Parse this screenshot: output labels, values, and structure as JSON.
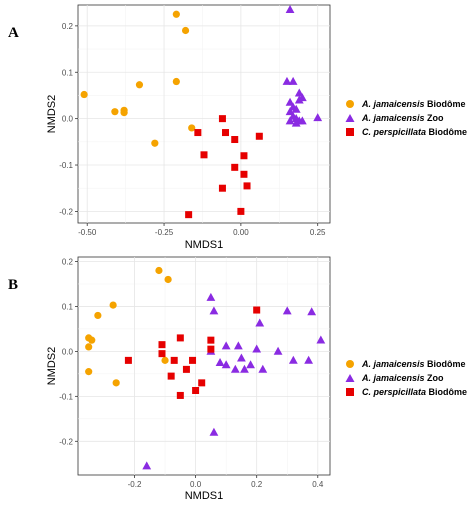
{
  "colors": {
    "orange": "#F5A300",
    "purple": "#8A2BE2",
    "red": "#E60000"
  },
  "chart_data": [
    {
      "panel": "A",
      "type": "scatter",
      "xlabel": "NMDS1",
      "ylabel": "NMDS2",
      "xlim": [
        -0.53,
        0.29
      ],
      "ylim": [
        -0.225,
        0.245
      ],
      "x_ticks": [
        -0.5,
        -0.25,
        0.0,
        0.25
      ],
      "x_tick_labels": [
        "-0.50",
        "-0.25",
        "0.00",
        "0.25"
      ],
      "y_ticks": [
        -0.2,
        -0.1,
        0.0,
        0.1,
        0.2
      ],
      "y_tick_labels": [
        "-0.2",
        "-0.1",
        "0.0",
        "0.1",
        "0.2"
      ],
      "grid": true,
      "legend": "right",
      "series": [
        {
          "legend_italic": "A. jamaicensis",
          "legend_rest": " Biodôme",
          "marker": "circle",
          "color": "#F5A300",
          "points": [
            [
              -0.21,
              0.225
            ],
            [
              -0.18,
              0.19
            ],
            [
              -0.51,
              0.052
            ],
            [
              -0.41,
              0.015
            ],
            [
              -0.38,
              0.018
            ],
            [
              -0.38,
              0.013
            ],
            [
              -0.33,
              0.073
            ],
            [
              -0.21,
              0.08
            ],
            [
              -0.28,
              -0.053
            ],
            [
              -0.16,
              -0.02
            ]
          ]
        },
        {
          "legend_italic": "A. jamaicensis",
          "legend_rest": " Zoo",
          "marker": "triangle",
          "color": "#8A2BE2",
          "points": [
            [
              0.16,
              0.235
            ],
            [
              0.15,
              0.08
            ],
            [
              0.17,
              0.08
            ],
            [
              0.19,
              0.055
            ],
            [
              0.2,
              0.045
            ],
            [
              0.19,
              0.04
            ],
            [
              0.16,
              0.035
            ],
            [
              0.17,
              0.025
            ],
            [
              0.18,
              0.02
            ],
            [
              0.16,
              0.015
            ],
            [
              0.17,
              0.005
            ],
            [
              0.18,
              0.0
            ],
            [
              0.19,
              -0.005
            ],
            [
              0.16,
              -0.005
            ],
            [
              0.18,
              -0.01
            ],
            [
              0.2,
              -0.005
            ],
            [
              0.25,
              0.002
            ]
          ]
        },
        {
          "legend_italic": "C. perspicillata",
          "legend_rest": " Biodôme",
          "marker": "square",
          "color": "#E60000",
          "points": [
            [
              -0.06,
              0.0
            ],
            [
              -0.14,
              -0.03
            ],
            [
              -0.05,
              -0.03
            ],
            [
              -0.02,
              -0.045
            ],
            [
              0.06,
              -0.038
            ],
            [
              -0.12,
              -0.078
            ],
            [
              0.01,
              -0.08
            ],
            [
              -0.02,
              -0.105
            ],
            [
              0.01,
              -0.12
            ],
            [
              -0.06,
              -0.15
            ],
            [
              0.02,
              -0.145
            ],
            [
              -0.17,
              -0.207
            ],
            [
              0.0,
              -0.2
            ]
          ]
        }
      ]
    },
    {
      "panel": "B",
      "type": "scatter",
      "xlabel": "NMDS1",
      "ylabel": "NMDS2",
      "xlim": [
        -0.385,
        0.44
      ],
      "ylim": [
        -0.275,
        0.21
      ],
      "x_ticks": [
        -0.2,
        0.0,
        0.2,
        0.4
      ],
      "x_tick_labels": [
        "-0.2",
        "0.0",
        "0.2",
        "0.4"
      ],
      "y_ticks": [
        -0.2,
        -0.1,
        0.0,
        0.1,
        0.2
      ],
      "y_tick_labels": [
        "-0.2",
        "-0.1",
        "0.0",
        "0.1",
        "0.2"
      ],
      "grid": true,
      "legend": "right",
      "series": [
        {
          "legend_italic": "A. jamaicensis",
          "legend_rest": " Biodôme",
          "marker": "circle",
          "color": "#F5A300",
          "points": [
            [
              -0.12,
              0.18
            ],
            [
              -0.09,
              0.16
            ],
            [
              -0.27,
              0.103
            ],
            [
              -0.32,
              0.08
            ],
            [
              -0.35,
              0.03
            ],
            [
              -0.34,
              0.025
            ],
            [
              -0.35,
              0.01
            ],
            [
              -0.35,
              -0.045
            ],
            [
              -0.26,
              -0.07
            ],
            [
              -0.1,
              -0.02
            ]
          ]
        },
        {
          "legend_italic": "A. jamaicensis",
          "legend_rest": " Zoo",
          "marker": "triangle",
          "color": "#8A2BE2",
          "points": [
            [
              0.05,
              0.12
            ],
            [
              0.06,
              0.09
            ],
            [
              0.21,
              0.063
            ],
            [
              0.3,
              0.09
            ],
            [
              0.38,
              0.088
            ],
            [
              0.41,
              0.025
            ],
            [
              0.1,
              0.012
            ],
            [
              0.14,
              0.012
            ],
            [
              0.2,
              0.005
            ],
            [
              0.27,
              0.0
            ],
            [
              0.05,
              0.0
            ],
            [
              0.15,
              -0.015
            ],
            [
              0.08,
              -0.025
            ],
            [
              0.1,
              -0.03
            ],
            [
              0.18,
              -0.03
            ],
            [
              0.32,
              -0.02
            ],
            [
              0.37,
              -0.02
            ],
            [
              0.13,
              -0.04
            ],
            [
              0.16,
              -0.04
            ],
            [
              0.22,
              -0.04
            ],
            [
              0.06,
              -0.18
            ],
            [
              -0.16,
              -0.255
            ]
          ]
        },
        {
          "legend_italic": "C. perspicillata",
          "legend_rest": " Biodôme",
          "marker": "square",
          "color": "#E60000",
          "points": [
            [
              0.2,
              0.092
            ],
            [
              -0.05,
              0.03
            ],
            [
              -0.11,
              0.015
            ],
            [
              0.05,
              0.025
            ],
            [
              -0.11,
              -0.005
            ],
            [
              -0.07,
              -0.02
            ],
            [
              -0.01,
              -0.02
            ],
            [
              0.05,
              0.005
            ],
            [
              -0.22,
              -0.02
            ],
            [
              -0.03,
              -0.04
            ],
            [
              -0.08,
              -0.055
            ],
            [
              0.02,
              -0.07
            ],
            [
              0.0,
              -0.087
            ],
            [
              -0.05,
              -0.098
            ]
          ]
        }
      ]
    }
  ]
}
